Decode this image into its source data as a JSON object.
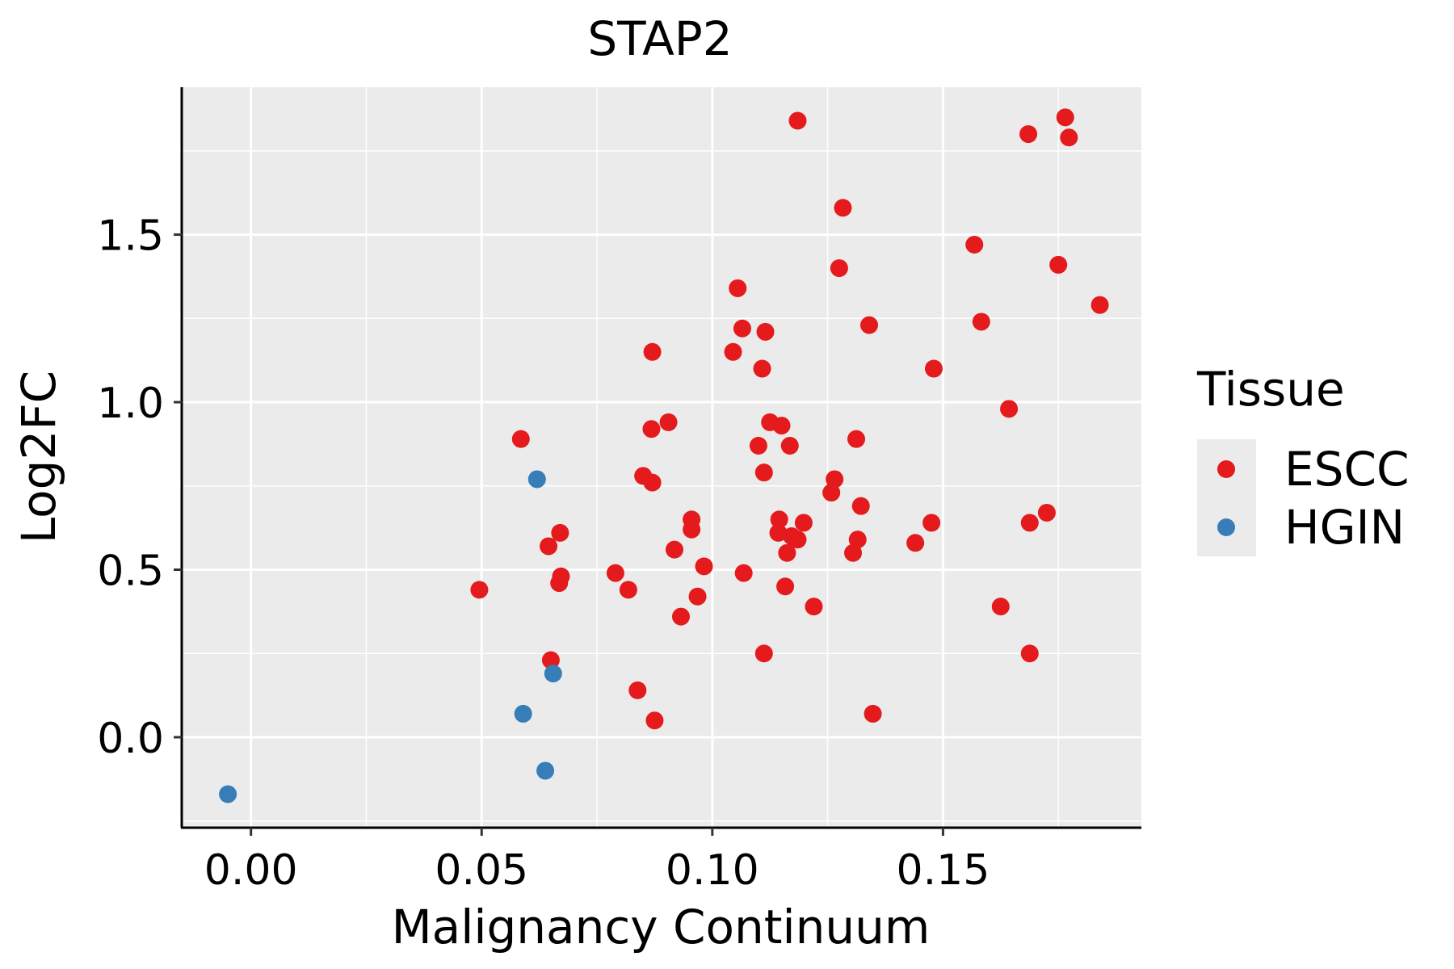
{
  "chart_data": {
    "type": "scatter",
    "title": "STAP2",
    "xlabel": "Malignancy Continuum",
    "ylabel": "Log2FC",
    "xlim": [
      -0.015,
      0.193
    ],
    "ylim": [
      -0.27,
      1.94
    ],
    "x_ticks": [
      0.0,
      0.05,
      0.1,
      0.15
    ],
    "x_tick_labels": [
      "0.00",
      "0.05",
      "0.10",
      "0.15"
    ],
    "y_ticks": [
      0.0,
      0.5,
      1.0,
      1.5
    ],
    "y_tick_labels": [
      "0.0",
      "0.5",
      "1.0",
      "1.5"
    ],
    "grid": true,
    "legend": {
      "title": "Tissue",
      "position": "right",
      "entries": [
        {
          "name": "ESCC",
          "color": "#E41A1C"
        },
        {
          "name": "HGIN",
          "color": "#377EB8"
        }
      ]
    },
    "series": [
      {
        "name": "ESCC",
        "color": "#E41A1C",
        "points": [
          {
            "x": 0.0495,
            "y": 0.44
          },
          {
            "x": 0.0585,
            "y": 0.89
          },
          {
            "x": 0.0645,
            "y": 0.57
          },
          {
            "x": 0.065,
            "y": 0.23
          },
          {
            "x": 0.067,
            "y": 0.61
          },
          {
            "x": 0.0672,
            "y": 0.48
          },
          {
            "x": 0.0668,
            "y": 0.46
          },
          {
            "x": 0.079,
            "y": 0.49
          },
          {
            "x": 0.0818,
            "y": 0.44
          },
          {
            "x": 0.0838,
            "y": 0.14
          },
          {
            "x": 0.085,
            "y": 0.78
          },
          {
            "x": 0.087,
            "y": 1.15
          },
          {
            "x": 0.0868,
            "y": 0.92
          },
          {
            "x": 0.087,
            "y": 0.76
          },
          {
            "x": 0.0875,
            "y": 0.05
          },
          {
            "x": 0.0905,
            "y": 0.94
          },
          {
            "x": 0.0918,
            "y": 0.56
          },
          {
            "x": 0.0932,
            "y": 0.36
          },
          {
            "x": 0.0955,
            "y": 0.65
          },
          {
            "x": 0.0955,
            "y": 0.62
          },
          {
            "x": 0.0968,
            "y": 0.42
          },
          {
            "x": 0.0982,
            "y": 0.51
          },
          {
            "x": 0.1045,
            "y": 1.15
          },
          {
            "x": 0.1055,
            "y": 1.34
          },
          {
            "x": 0.1065,
            "y": 1.22
          },
          {
            "x": 0.1068,
            "y": 0.49
          },
          {
            "x": 0.11,
            "y": 0.87
          },
          {
            "x": 0.1108,
            "y": 1.1
          },
          {
            "x": 0.1112,
            "y": 0.79
          },
          {
            "x": 0.1115,
            "y": 1.21
          },
          {
            "x": 0.1112,
            "y": 0.25
          },
          {
            "x": 0.1125,
            "y": 0.94
          },
          {
            "x": 0.1145,
            "y": 0.65
          },
          {
            "x": 0.1143,
            "y": 0.61
          },
          {
            "x": 0.115,
            "y": 0.93
          },
          {
            "x": 0.1158,
            "y": 0.45
          },
          {
            "x": 0.1162,
            "y": 0.55
          },
          {
            "x": 0.1168,
            "y": 0.87
          },
          {
            "x": 0.1172,
            "y": 0.6
          },
          {
            "x": 0.1185,
            "y": 1.84
          },
          {
            "x": 0.1185,
            "y": 0.59
          },
          {
            "x": 0.1198,
            "y": 0.64
          },
          {
            "x": 0.122,
            "y": 0.39
          },
          {
            "x": 0.1258,
            "y": 0.73
          },
          {
            "x": 0.1265,
            "y": 0.77
          },
          {
            "x": 0.1275,
            "y": 1.4
          },
          {
            "x": 0.1283,
            "y": 1.58
          },
          {
            "x": 0.1305,
            "y": 0.55
          },
          {
            "x": 0.1312,
            "y": 0.89
          },
          {
            "x": 0.1315,
            "y": 0.59
          },
          {
            "x": 0.1322,
            "y": 0.69
          },
          {
            "x": 0.134,
            "y": 1.23
          },
          {
            "x": 0.1348,
            "y": 0.07
          },
          {
            "x": 0.144,
            "y": 0.58
          },
          {
            "x": 0.1475,
            "y": 0.64
          },
          {
            "x": 0.148,
            "y": 1.1
          },
          {
            "x": 0.1568,
            "y": 1.47
          },
          {
            "x": 0.1583,
            "y": 1.24
          },
          {
            "x": 0.1625,
            "y": 0.39
          },
          {
            "x": 0.1643,
            "y": 0.98
          },
          {
            "x": 0.1685,
            "y": 1.8
          },
          {
            "x": 0.1688,
            "y": 0.64
          },
          {
            "x": 0.1688,
            "y": 0.25
          },
          {
            "x": 0.1725,
            "y": 0.67
          },
          {
            "x": 0.175,
            "y": 1.41
          },
          {
            "x": 0.1765,
            "y": 1.85
          },
          {
            "x": 0.1773,
            "y": 1.79
          },
          {
            "x": 0.184,
            "y": 1.29
          }
        ]
      },
      {
        "name": "HGIN",
        "color": "#377EB8",
        "points": [
          {
            "x": -0.005,
            "y": -0.17
          },
          {
            "x": 0.059,
            "y": 0.07
          },
          {
            "x": 0.062,
            "y": 0.77
          },
          {
            "x": 0.0638,
            "y": -0.1
          },
          {
            "x": 0.0655,
            "y": 0.19
          }
        ]
      }
    ]
  }
}
